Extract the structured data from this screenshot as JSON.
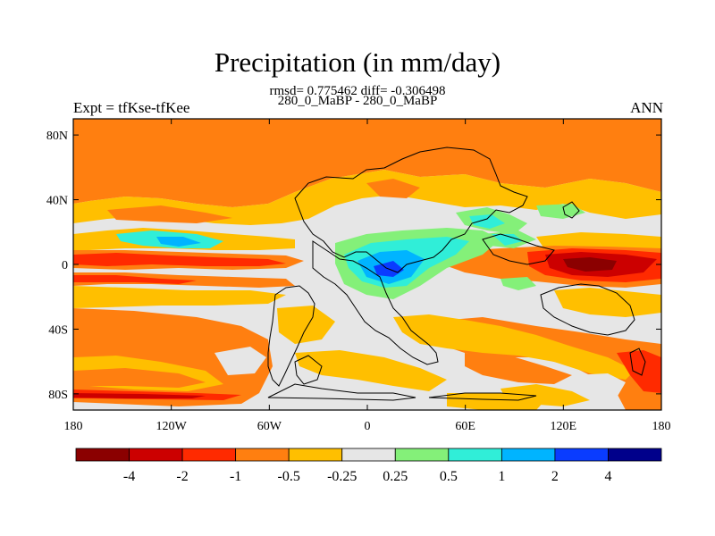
{
  "chart_data": {
    "type": "heatmap",
    "title": "Precipitation (in mm/day)",
    "stats_line": "rmsd= 0.775462 diff= -0.306498",
    "case_line": "280_0_MaBP - 280_0_MaBP",
    "left_label": "Expt = tfKse-tfKee",
    "right_label": "ANN",
    "x_ticks": [
      "180",
      "120W",
      "60W",
      "0",
      "60E",
      "120E",
      "180"
    ],
    "y_ticks": [
      "80N",
      "40N",
      "0",
      "40S",
      "80S"
    ],
    "colorbar": {
      "levels": [
        "-4",
        "-2",
        "-1",
        "-0.5",
        "-0.25",
        "0.25",
        "0.5",
        "1",
        "2",
        "4"
      ],
      "colors": [
        "#8b0000",
        "#cc0000",
        "#ff2a00",
        "#ff7f10",
        "#ffbf00",
        "#e6e6e6",
        "#84f079",
        "#30eed8",
        "#00b4ff",
        "#0a3cff",
        "#00008b"
      ]
    },
    "grid": false
  }
}
